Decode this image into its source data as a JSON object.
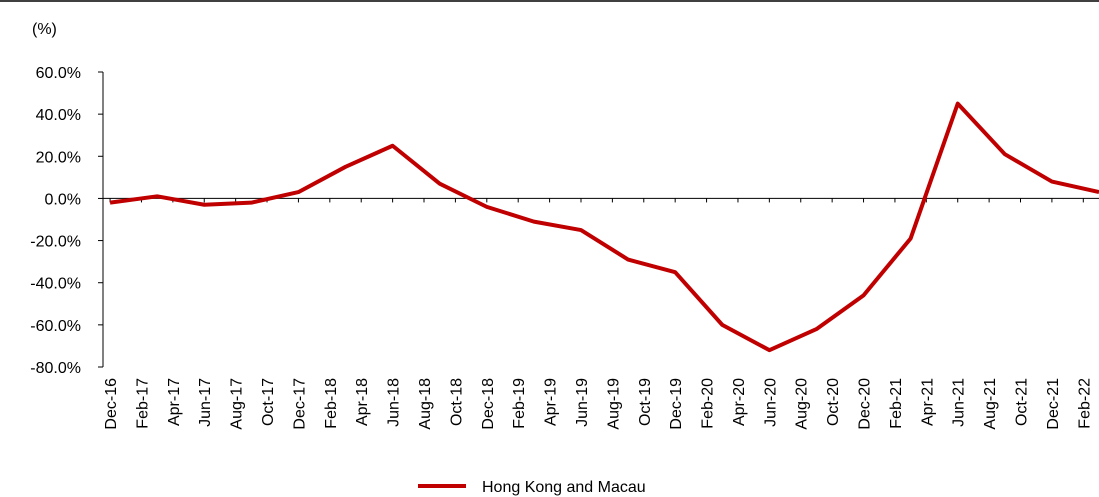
{
  "chart_data": {
    "type": "line",
    "y_unit_label": "(%)",
    "x": [
      0,
      3,
      6,
      9,
      12,
      15,
      18,
      21,
      24,
      27,
      30,
      33,
      36,
      39,
      42,
      45,
      48,
      51,
      54,
      57,
      60,
      63
    ],
    "series": [
      {
        "name": "Hong Kong and Macau",
        "color": "#c00000",
        "values": [
          -2,
          1,
          -3,
          -2,
          3,
          15,
          25,
          7,
          -4,
          -11,
          -15,
          -29,
          -35,
          -60,
          -72,
          -62,
          -46,
          -19,
          45,
          21,
          8,
          3
        ]
      }
    ],
    "xlim": [
      -0.45,
      63
    ],
    "xticks": [
      {
        "value": 0,
        "label": "Dec-16"
      },
      {
        "value": 2,
        "label": "Feb-17"
      },
      {
        "value": 4,
        "label": "Apr-17"
      },
      {
        "value": 6,
        "label": "Jun-17"
      },
      {
        "value": 8,
        "label": "Aug-17"
      },
      {
        "value": 10,
        "label": "Oct-17"
      },
      {
        "value": 12,
        "label": "Dec-17"
      },
      {
        "value": 14,
        "label": "Feb-18"
      },
      {
        "value": 16,
        "label": "Apr-18"
      },
      {
        "value": 18,
        "label": "Jun-18"
      },
      {
        "value": 20,
        "label": "Aug-18"
      },
      {
        "value": 22,
        "label": "Oct-18"
      },
      {
        "value": 24,
        "label": "Dec-18"
      },
      {
        "value": 26,
        "label": "Feb-19"
      },
      {
        "value": 28,
        "label": "Apr-19"
      },
      {
        "value": 30,
        "label": "Jun-19"
      },
      {
        "value": 32,
        "label": "Aug-19"
      },
      {
        "value": 34,
        "label": "Oct-19"
      },
      {
        "value": 36,
        "label": "Dec-19"
      },
      {
        "value": 38,
        "label": "Feb-20"
      },
      {
        "value": 40,
        "label": "Apr-20"
      },
      {
        "value": 42,
        "label": "Jun-20"
      },
      {
        "value": 44,
        "label": "Aug-20"
      },
      {
        "value": 46,
        "label": "Oct-20"
      },
      {
        "value": 48,
        "label": "Dec-20"
      },
      {
        "value": 50,
        "label": "Feb-21"
      },
      {
        "value": 52,
        "label": "Apr-21"
      },
      {
        "value": 54,
        "label": "Jun-21"
      },
      {
        "value": 56,
        "label": "Aug-21"
      },
      {
        "value": 58,
        "label": "Oct-21"
      },
      {
        "value": 60,
        "label": "Dec-21"
      },
      {
        "value": 62,
        "label": "Feb-22"
      }
    ],
    "ylim": [
      -80,
      60
    ],
    "yticks": [
      {
        "value": 60,
        "label": "60.0%"
      },
      {
        "value": 40,
        "label": "40.0%"
      },
      {
        "value": 20,
        "label": "20.0%"
      },
      {
        "value": 0,
        "label": "0.0%"
      },
      {
        "value": -20,
        "label": "-20.0%"
      },
      {
        "value": -40,
        "label": "-40.0%"
      },
      {
        "value": -60,
        "label": "-60.0%"
      },
      {
        "value": -80,
        "label": "-80.0%"
      }
    ],
    "legend": "bottom"
  }
}
